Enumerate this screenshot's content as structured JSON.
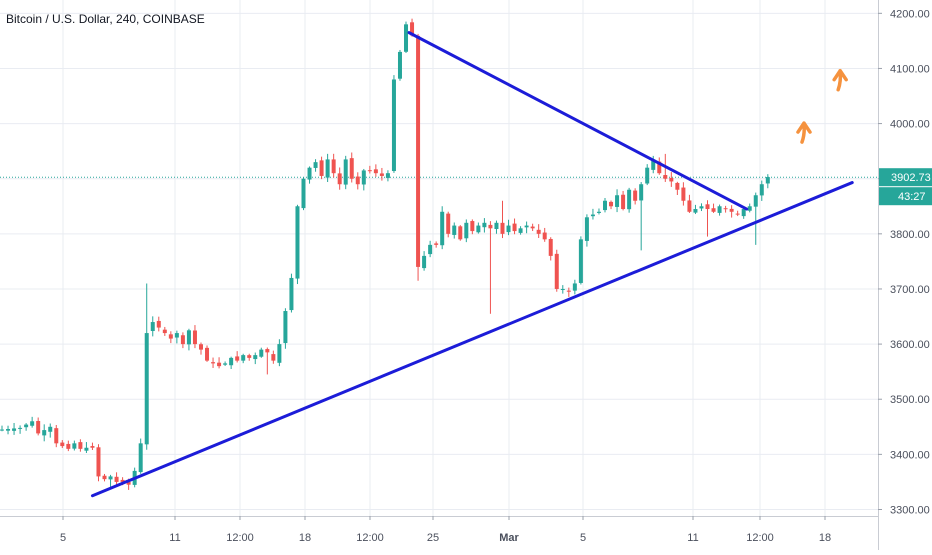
{
  "symbol": {
    "title": "Bitcoin / U.S. Dollar, 240, COINBASE"
  },
  "colors": {
    "up": "#26a69a",
    "down": "#ef5350",
    "trendline": "#1c1cd8",
    "arrow": "#f5923e",
    "grid": "#e9ecf2",
    "price_line": "#26a69a",
    "axis_text": "#4a4f5c"
  },
  "price_tag": {
    "price": "3902.73",
    "countdown": "43:27"
  },
  "chart_data": {
    "type": "candlestick",
    "y_axis": {
      "range": [
        3290,
        4225
      ],
      "ticks": [
        "3300.00",
        "3400.00",
        "3500.00",
        "3600.00",
        "3700.00",
        "3800.00",
        "3900.00",
        "4000.00",
        "4100.00",
        "4200.00"
      ]
    },
    "x_axis": {
      "ticks": [
        "5",
        "11",
        "12:00",
        "18",
        "12:00",
        "25",
        "Mar",
        "5",
        "11",
        "12:00",
        "18"
      ],
      "bold": [
        "Mar"
      ]
    },
    "last_price": 3902.73,
    "path": [
      [
        0,
        3445
      ],
      [
        3,
        3448
      ],
      [
        5,
        3460
      ],
      [
        6,
        3438
      ],
      [
        8,
        3450
      ],
      [
        9,
        3420
      ],
      [
        10,
        3415
      ],
      [
        11,
        3410
      ],
      [
        12,
        3420
      ],
      [
        13,
        3410
      ],
      [
        14,
        3412
      ],
      [
        15,
        3412
      ],
      [
        16,
        3360
      ],
      [
        17,
        3355
      ],
      [
        18,
        3360
      ],
      [
        19,
        3350
      ],
      [
        20,
        3350
      ],
      [
        21,
        3345
      ],
      [
        22,
        3370
      ],
      [
        23,
        3420
      ],
      [
        24,
        3620
      ],
      [
        25,
        3640
      ],
      [
        26,
        3630
      ],
      [
        27,
        3620
      ],
      [
        28,
        3610
      ],
      [
        29,
        3620
      ],
      [
        30,
        3600
      ],
      [
        31,
        3625
      ],
      [
        32,
        3600
      ],
      [
        33,
        3590
      ],
      [
        34,
        3570
      ],
      [
        35,
        3565
      ],
      [
        36,
        3560
      ],
      [
        37,
        3565
      ],
      [
        38,
        3575
      ],
      [
        39,
        3570
      ],
      [
        40,
        3580
      ],
      [
        41,
        3575
      ],
      [
        42,
        3580
      ],
      [
        43,
        3590
      ],
      [
        44,
        3585
      ],
      [
        45,
        3570
      ],
      [
        46,
        3600
      ],
      [
        47,
        3660
      ],
      [
        48,
        3720
      ],
      [
        49,
        3850
      ],
      [
        50,
        3900
      ],
      [
        51,
        3920
      ],
      [
        52,
        3930
      ],
      [
        53,
        3905
      ],
      [
        54,
        3935
      ],
      [
        55,
        3910
      ],
      [
        56,
        3890
      ],
      [
        57,
        3935
      ],
      [
        58,
        3900
      ],
      [
        59,
        3890
      ],
      [
        60,
        3915
      ],
      [
        61,
        3915
      ],
      [
        62,
        3910
      ],
      [
        63,
        3905
      ],
      [
        64,
        3910
      ],
      [
        65,
        4080
      ],
      [
        66,
        4130
      ],
      [
        67,
        4180
      ],
      [
        68,
        4160
      ],
      [
        69,
        3740
      ],
      [
        70,
        3760
      ],
      [
        71,
        3780
      ],
      [
        72,
        3780
      ],
      [
        73,
        3840
      ],
      [
        74,
        3800
      ],
      [
        75,
        3815
      ],
      [
        76,
        3790
      ],
      [
        77,
        3820
      ],
      [
        78,
        3805
      ],
      [
        79,
        3815
      ],
      [
        80,
        3820
      ],
      [
        81,
        3810
      ],
      [
        82,
        3820
      ],
      [
        83,
        3800
      ],
      [
        84,
        3815
      ],
      [
        85,
        3805
      ],
      [
        86,
        3810
      ],
      [
        87,
        3815
      ],
      [
        88,
        3810
      ],
      [
        89,
        3800
      ],
      [
        90,
        3790
      ],
      [
        91,
        3760
      ],
      [
        92,
        3700
      ],
      [
        93,
        3700
      ],
      [
        94,
        3695
      ],
      [
        95,
        3710
      ],
      [
        96,
        3790
      ],
      [
        97,
        3830
      ],
      [
        98,
        3835
      ],
      [
        99,
        3840
      ],
      [
        100,
        3860
      ],
      [
        101,
        3850
      ],
      [
        102,
        3870
      ],
      [
        103,
        3845
      ],
      [
        104,
        3880
      ],
      [
        105,
        3860
      ],
      [
        106,
        3890
      ],
      [
        107,
        3920
      ],
      [
        108,
        3935
      ],
      [
        109,
        3910
      ],
      [
        110,
        3900
      ],
      [
        111,
        3895
      ],
      [
        112,
        3880
      ],
      [
        113,
        3860
      ],
      [
        114,
        3840
      ],
      [
        115,
        3845
      ],
      [
        116,
        3850
      ],
      [
        117,
        3845
      ],
      [
        118,
        3840
      ],
      [
        119,
        3850
      ],
      [
        120,
        3845
      ],
      [
        121,
        3840
      ],
      [
        122,
        3835
      ],
      [
        123,
        3845
      ],
      [
        124,
        3850
      ],
      [
        125,
        3870
      ],
      [
        126,
        3890
      ],
      [
        127,
        3903
      ]
    ],
    "spikes": [
      {
        "bar": 18,
        "low": 3340
      },
      {
        "bar": 24,
        "high": 3710
      },
      {
        "bar": 44,
        "low": 3545
      },
      {
        "bar": 67,
        "high": 4185
      },
      {
        "bar": 69,
        "low": 3715
      },
      {
        "bar": 81,
        "low": 3655
      },
      {
        "bar": 83,
        "high": 3860
      },
      {
        "bar": 106,
        "low": 3770
      },
      {
        "bar": 110,
        "high": 3945
      },
      {
        "bar": 117,
        "low": 3795
      },
      {
        "bar": 125,
        "low": 3780
      }
    ],
    "trendlines": [
      {
        "from": {
          "bar": 15,
          "price": 3325
        },
        "to": {
          "bar": 141,
          "price": 3893
        }
      },
      {
        "from": {
          "bar": 67.5,
          "price": 4165
        },
        "to": {
          "bar": 123.5,
          "price": 3845
        }
      }
    ],
    "annotations": [
      {
        "type": "arrow-up",
        "bar": 133,
        "price": 3990
      },
      {
        "type": "arrow-up",
        "bar": 139,
        "price": 4085
      }
    ]
  }
}
